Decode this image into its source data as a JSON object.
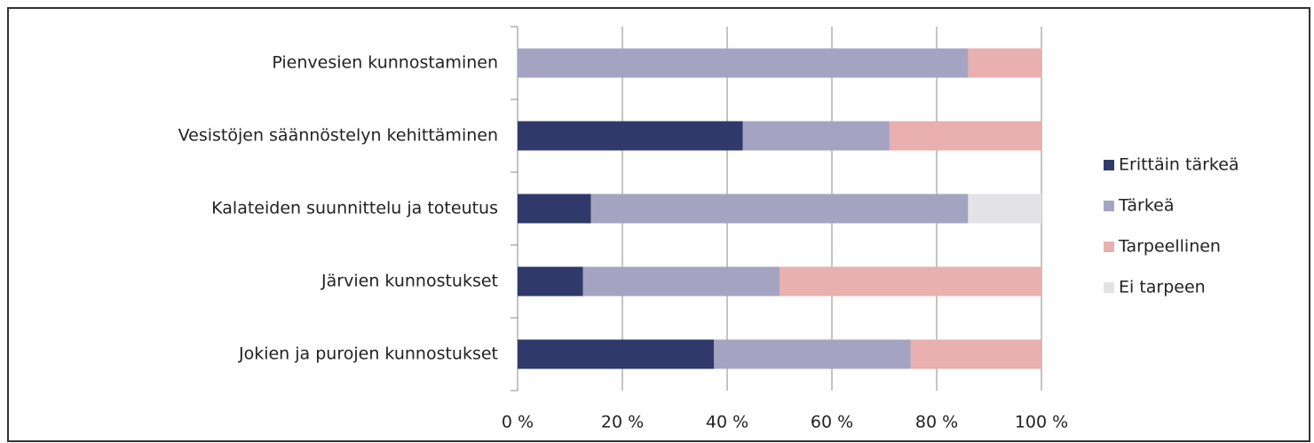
{
  "chart_data": {
    "type": "stacked_barh",
    "categories": [
      "Pienvesien kunnostaminen",
      "Vesistöjen säännöstelyn kehittäminen",
      "Kalateiden suunnittelu ja toteutus",
      "Järvien kunnostukset",
      "Jokien ja purojen kunnostukset"
    ],
    "series": [
      {
        "name": "Erittäin tärkeä",
        "color": "#2f3a6a",
        "values": [
          0,
          43,
          14,
          12.5,
          37.5
        ]
      },
      {
        "name": "Tärkeä",
        "color": "#a4a4c2",
        "values": [
          86,
          28,
          72,
          37.5,
          37.5
        ]
      },
      {
        "name": "Tarpeellinen",
        "color": "#e8b0ae",
        "values": [
          14,
          29,
          0,
          50,
          25
        ]
      },
      {
        "name": "Ei tarpeen",
        "color": "#e3e3e6",
        "values": [
          0,
          0,
          14,
          0,
          0
        ]
      }
    ],
    "xlim": [
      0,
      100
    ],
    "xticks": [
      {
        "value": 0,
        "label": "0 %"
      },
      {
        "value": 20,
        "label": "20 %"
      },
      {
        "value": 40,
        "label": "40 %"
      },
      {
        "value": 60,
        "label": "60 %"
      },
      {
        "value": 80,
        "label": "80 %"
      },
      {
        "value": 100,
        "label": "100 %"
      }
    ],
    "grid": true,
    "legend": "right"
  }
}
